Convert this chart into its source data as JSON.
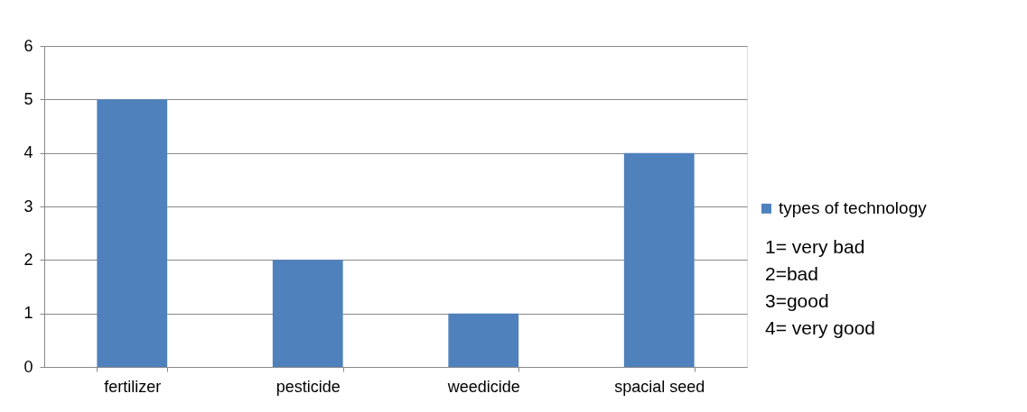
{
  "chart_data": {
    "type": "bar",
    "categories": [
      "fertilizer",
      "pesticide",
      "weedicide",
      "spacial seed"
    ],
    "series": [
      {
        "name": "types of technology",
        "color": "#4f81bd",
        "values": [
          5,
          2,
          1,
          4
        ]
      }
    ],
    "ylim": [
      0,
      6
    ],
    "yticks": [
      0,
      1,
      2,
      3,
      4,
      5,
      6
    ],
    "grid": "y",
    "legend": "right",
    "annotations": [
      "1= very bad",
      "2=bad",
      " 3=good",
      "4= very good"
    ]
  }
}
